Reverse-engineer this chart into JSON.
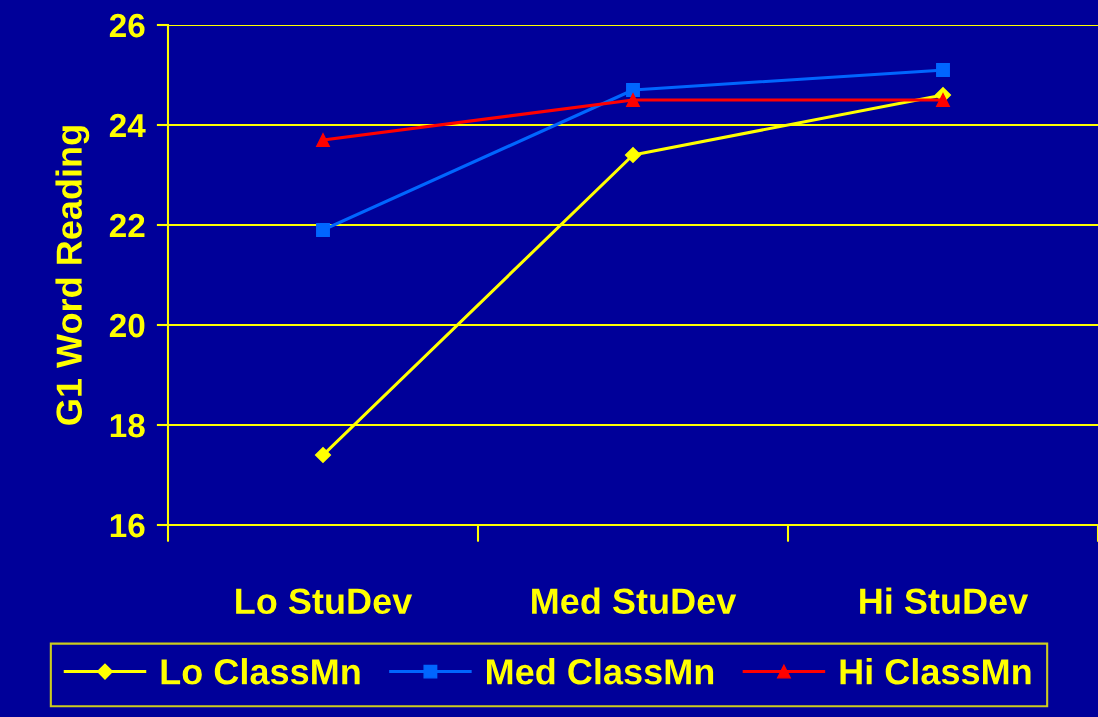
{
  "chart_data": {
    "type": "line",
    "ylabel": "G1 Word Reading",
    "categories": [
      "Lo StuDev",
      "Med StuDev",
      "Hi StuDev"
    ],
    "series": [
      {
        "name": "Lo ClassMn",
        "color": "#ffff00",
        "marker": "diamond",
        "values": [
          17.4,
          23.4,
          24.6
        ]
      },
      {
        "name": "Med ClassMn",
        "color": "#0066ff",
        "marker": "square",
        "values": [
          21.9,
          24.7,
          25.1
        ]
      },
      {
        "name": "Hi ClassMn",
        "color": "#ff0000",
        "marker": "triangle",
        "values": [
          23.7,
          24.5,
          24.5
        ]
      }
    ],
    "ylim": [
      16,
      26
    ],
    "yticks": [
      16,
      18,
      20,
      22,
      24,
      26
    ],
    "grid": "y",
    "legend": "bottom",
    "line_style": "solid"
  }
}
